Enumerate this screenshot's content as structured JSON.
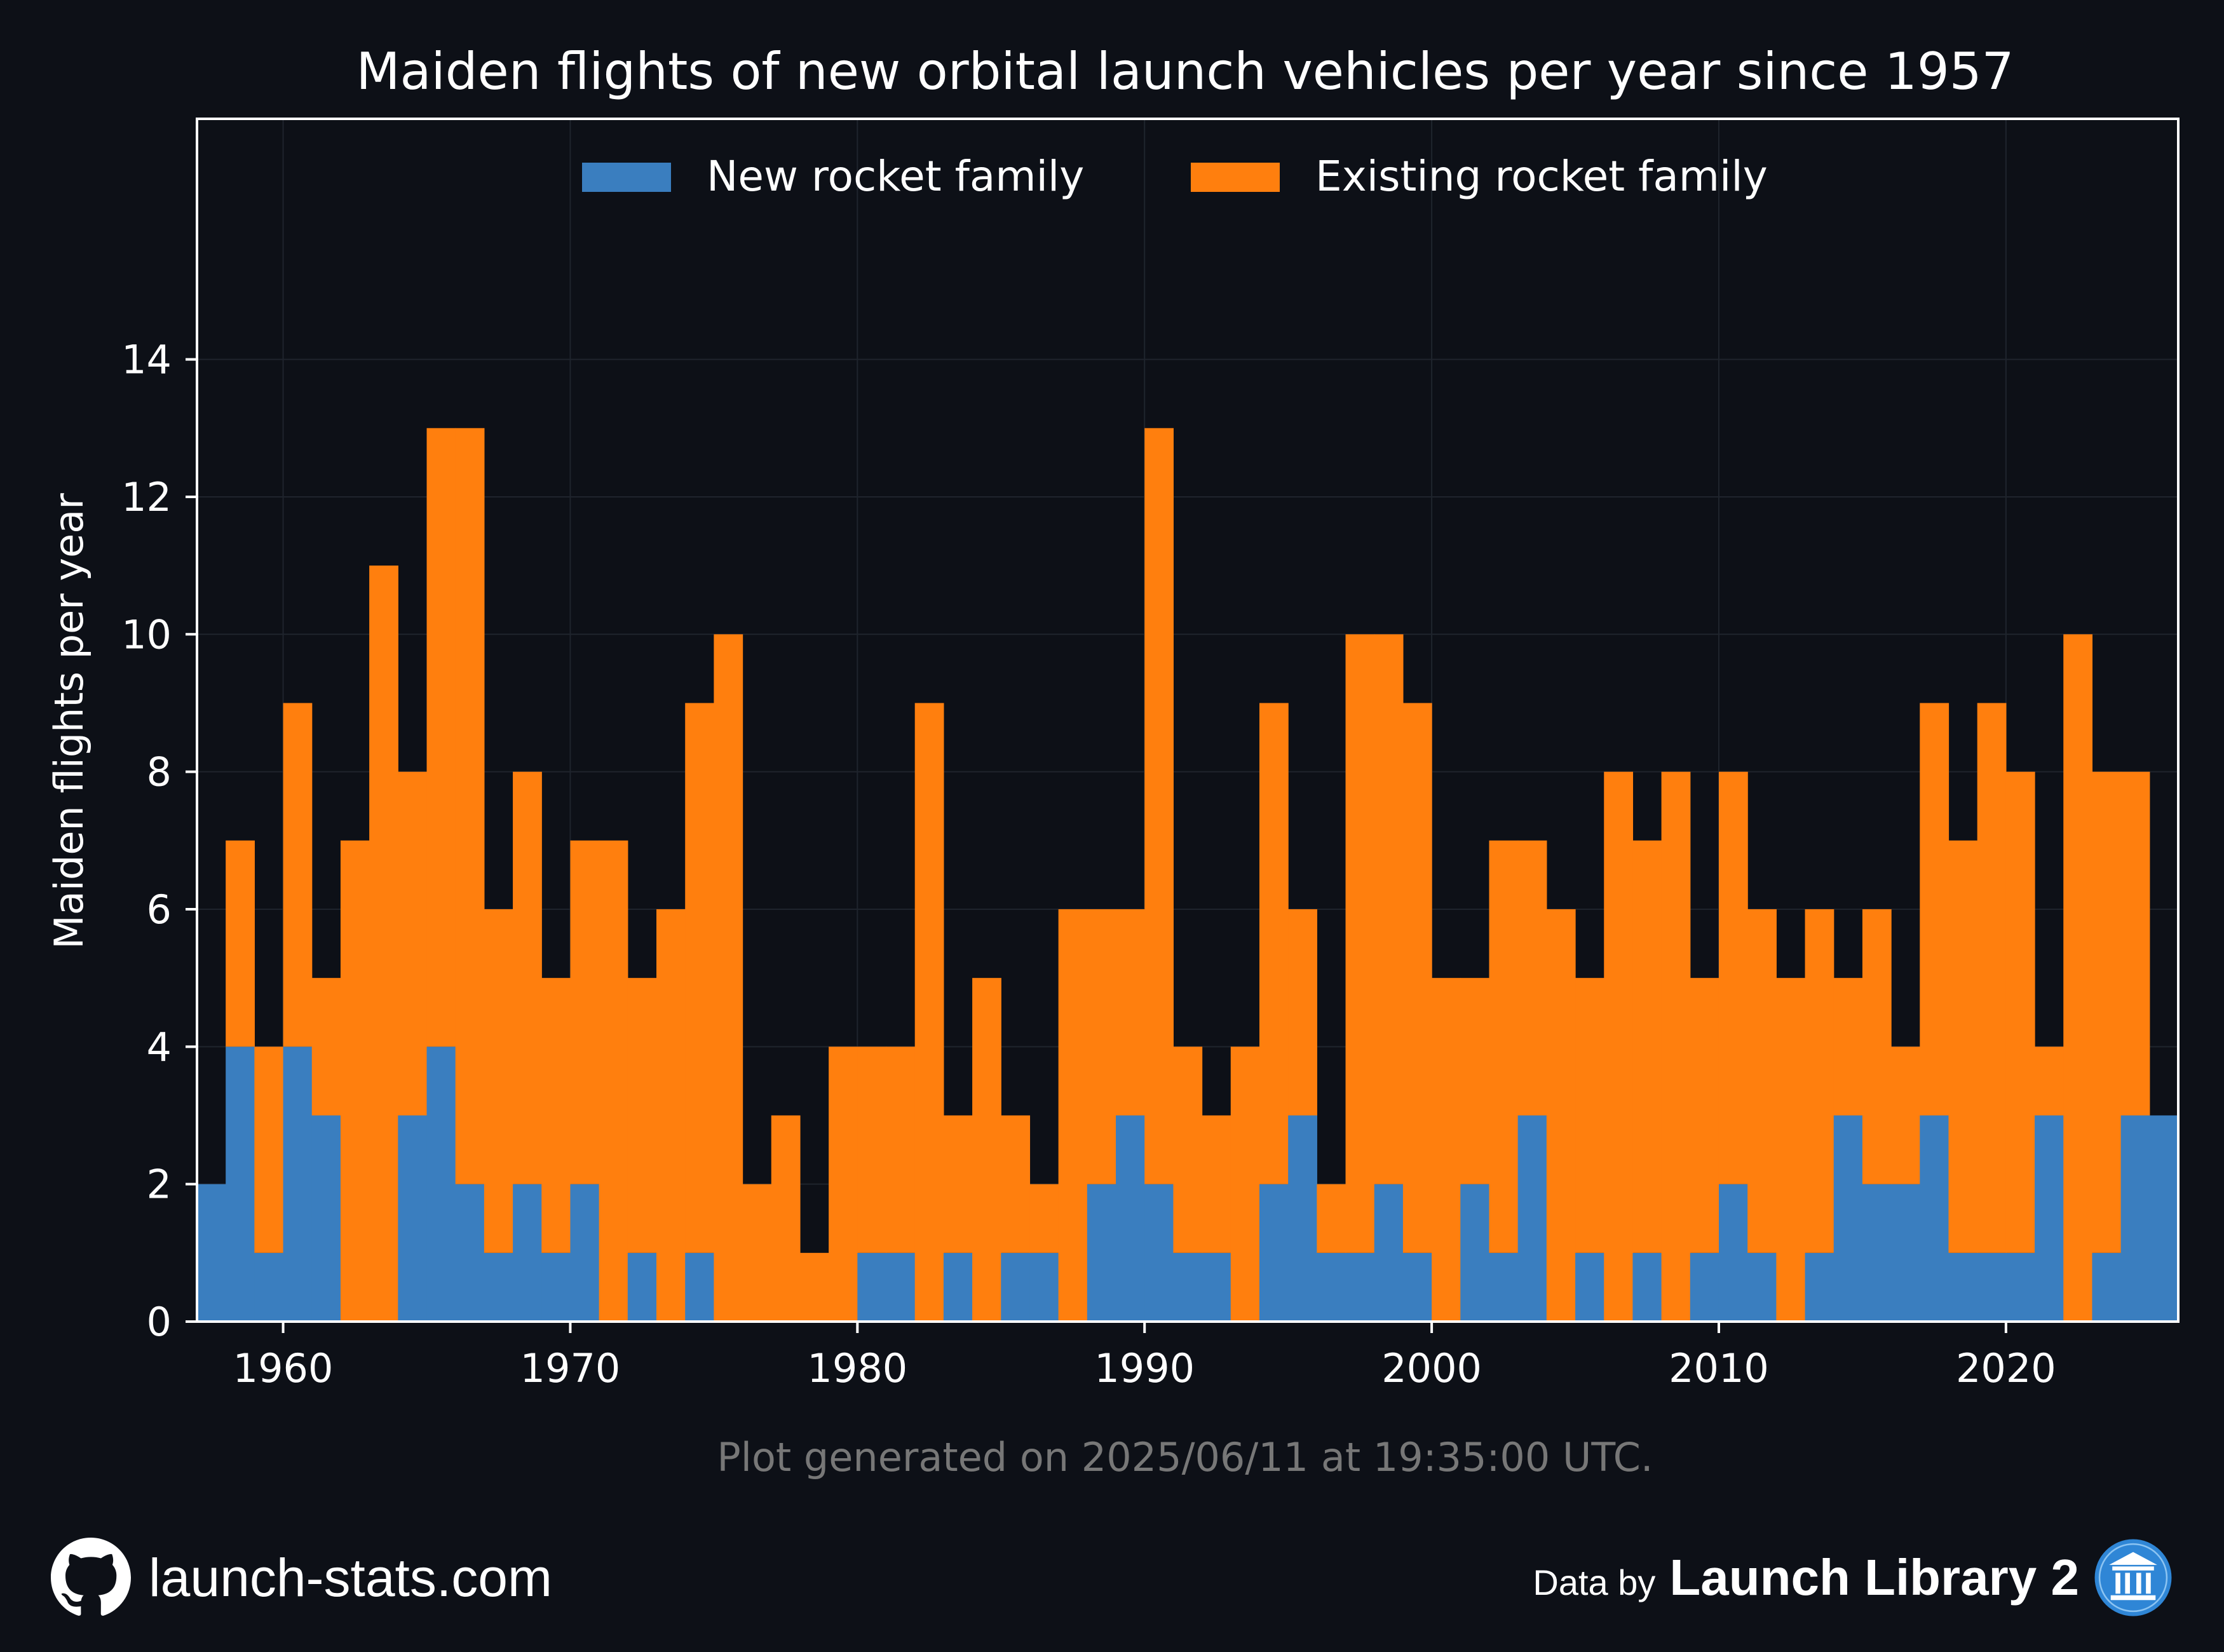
{
  "colors": {
    "background": "#0d1017",
    "new_family": "#3a7ebf",
    "existing_family": "#ff7f0e",
    "grid": "#1f242d",
    "text": "#ffffff",
    "muted_text": "#777777",
    "library_icon": "#2f86d6"
  },
  "chart_data": {
    "type": "bar",
    "stacked": true,
    "title": "Maiden flights of new orbital launch vehicles per year since 1957",
    "xlabel": "",
    "ylabel": "Maiden flights per year",
    "xlim": [
      1957,
      2026
    ],
    "ylim": [
      0,
      17.5
    ],
    "xticks": [
      1960,
      1970,
      1980,
      1990,
      2000,
      2010,
      2020
    ],
    "yticks": [
      0,
      2,
      4,
      6,
      8,
      10,
      12,
      14
    ],
    "grid": true,
    "legend": {
      "placement": "top-center",
      "columns": 2
    },
    "x": [
      1957,
      1958,
      1959,
      1960,
      1961,
      1962,
      1963,
      1964,
      1965,
      1966,
      1967,
      1968,
      1969,
      1970,
      1971,
      1972,
      1973,
      1974,
      1975,
      1976,
      1977,
      1978,
      1979,
      1980,
      1981,
      1982,
      1983,
      1984,
      1985,
      1986,
      1987,
      1988,
      1989,
      1990,
      1991,
      1992,
      1993,
      1994,
      1995,
      1996,
      1997,
      1998,
      1999,
      2000,
      2001,
      2002,
      2003,
      2004,
      2005,
      2006,
      2007,
      2008,
      2009,
      2010,
      2011,
      2012,
      2013,
      2014,
      2015,
      2016,
      2017,
      2018,
      2019,
      2020,
      2021,
      2022,
      2023,
      2024,
      2025
    ],
    "series": [
      {
        "name": "New rocket family",
        "color_key": "new_family",
        "values": [
          2,
          4,
          1,
          4,
          3,
          0,
          0,
          3,
          4,
          2,
          1,
          2,
          1,
          2,
          0,
          1,
          0,
          1,
          0,
          0,
          0,
          0,
          0,
          1,
          1,
          0,
          1,
          0,
          1,
          1,
          0,
          2,
          3,
          2,
          1,
          1,
          0,
          2,
          3,
          1,
          1,
          2,
          1,
          0,
          2,
          1,
          3,
          0,
          1,
          0,
          1,
          0,
          1,
          2,
          1,
          0,
          1,
          3,
          2,
          2,
          3,
          1,
          1,
          1,
          3,
          0,
          1,
          3,
          3
        ]
      },
      {
        "name": "Existing rocket family",
        "color_key": "existing_family",
        "values": [
          0,
          3,
          3,
          5,
          2,
          7,
          11,
          5,
          9,
          11,
          5,
          6,
          4,
          5,
          7,
          4,
          6,
          8,
          10,
          2,
          3,
          1,
          4,
          3,
          3,
          9,
          2,
          5,
          2,
          1,
          6,
          4,
          3,
          11,
          3,
          2,
          4,
          7,
          3,
          1,
          9,
          8,
          8,
          5,
          3,
          6,
          4,
          6,
          4,
          8,
          6,
          8,
          4,
          6,
          5,
          5,
          5,
          2,
          4,
          2,
          6,
          6,
          8,
          7,
          1,
          10,
          7,
          5,
          0
        ]
      }
    ]
  },
  "footer": {
    "generated_note": "Plot generated on 2025/06/11 at 19:35:00 UTC.",
    "site": "launch-stats.com",
    "data_by_prefix": "Data by",
    "data_by_brand": "Launch Library 2",
    "left_icon": "github-icon",
    "right_icon": "library-icon"
  }
}
